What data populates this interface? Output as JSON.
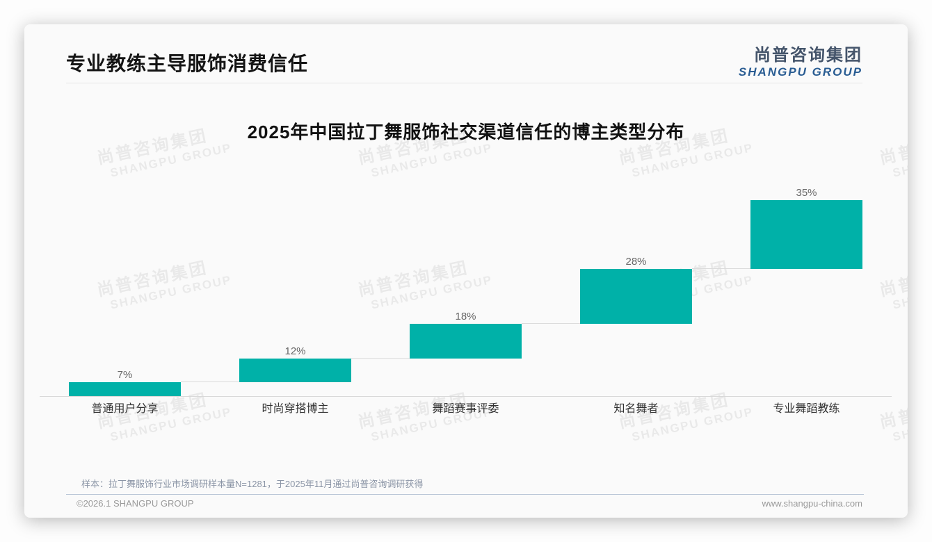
{
  "header": {
    "title": "专业教练主导服饰消费信任",
    "logo": {
      "cn": "尚普咨询集团",
      "en": "SHANGPU GROUP"
    }
  },
  "watermark": {
    "line1": "尚普咨询集团",
    "line2": "SHANGPU GROUP"
  },
  "chart_data": {
    "type": "bar",
    "subtype": "stacked-stair-waterfall",
    "title": "2025年中国拉丁舞服饰社交渠道信任的博主类型分布",
    "categories": [
      "普通用户分享",
      "时尚穿搭博主",
      "舞蹈赛事评委",
      "知名舞者",
      "专业舞蹈教练"
    ],
    "values": [
      7,
      12,
      18,
      28,
      35
    ],
    "data_labels": [
      "7%",
      "12%",
      "18%",
      "28%",
      "35%"
    ],
    "unit": "%",
    "ylim": [
      0,
      100
    ],
    "cumulative_positioning": true,
    "bar_color": "#00b1a8",
    "connector_color": "#dcdcdc",
    "grid": false,
    "legend": false
  },
  "footnote": "样本：拉丁舞服饰行业市场调研样本量N=1281，于2025年11月通过尚普咨询调研获得",
  "footer": {
    "left": "©2026.1 SHANGPU GROUP",
    "right": "www.shangpu-china.com"
  }
}
